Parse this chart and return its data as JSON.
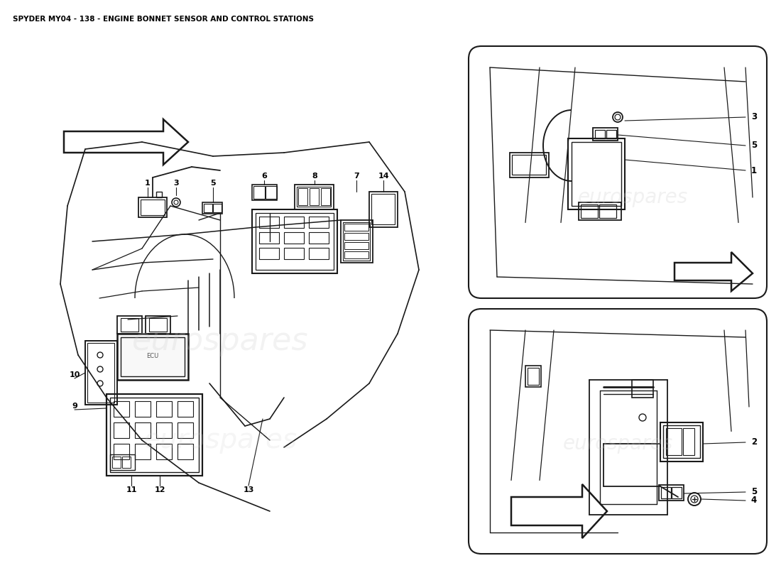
{
  "title": "SPYDER MY04 - 138 - ENGINE BONNET SENSOR AND CONTROL STATIONS",
  "title_fontsize": 7.5,
  "title_color": "#000000",
  "bg_color": "#ffffff",
  "fig_width": 11.0,
  "fig_height": 8.0,
  "line_color": "#1a1a1a",
  "watermark_text": "eurospares",
  "watermark_color": "#c8c8c8",
  "watermark_alpha": 0.35
}
